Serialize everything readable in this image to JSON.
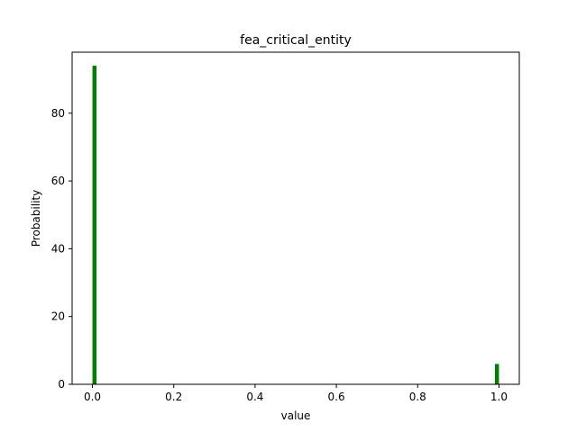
{
  "chart_data": {
    "type": "bar",
    "title": "fea_critical_entity",
    "xlabel": "value",
    "ylabel": "Probability",
    "xlim": [
      -0.05,
      1.05
    ],
    "ylim": [
      0,
      98
    ],
    "xticks": [
      0.0,
      0.2,
      0.4,
      0.6,
      0.8,
      1.0
    ],
    "xtick_labels": [
      "0.0",
      "0.2",
      "0.4",
      "0.6",
      "0.8",
      "1.0"
    ],
    "yticks": [
      0,
      20,
      40,
      60,
      80
    ],
    "ytick_labels": [
      "0",
      "20",
      "40",
      "60",
      "80"
    ],
    "bin_width": 0.01,
    "bars": [
      {
        "x": 0.0,
        "value": 94
      },
      {
        "x": 0.99,
        "value": 6
      }
    ],
    "bar_color": "#008000",
    "grid": false,
    "legend": "none"
  }
}
